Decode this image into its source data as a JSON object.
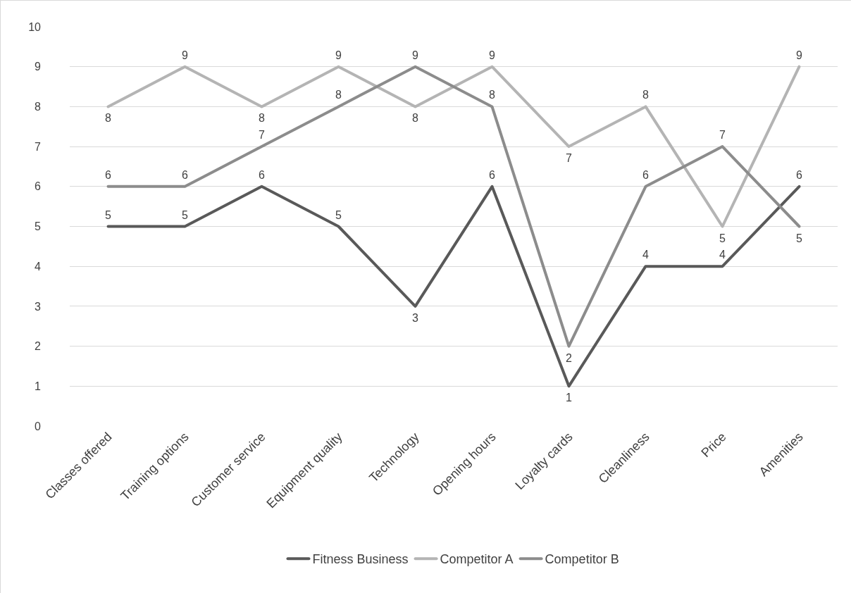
{
  "chart_data": {
    "type": "line",
    "categories": [
      "Classes offered",
      "Training options",
      "Customer service",
      "Equipment quality",
      "Technology",
      "Opening hours",
      "Loyalty cards",
      "Cleanliness",
      "Price",
      "Amenities"
    ],
    "series": [
      {
        "name": "Fitness Business",
        "color": "#595959",
        "values": [
          5,
          5,
          6,
          5,
          3,
          6,
          1,
          4,
          4,
          6
        ]
      },
      {
        "name": "Competitor A",
        "color": "#b4b4b4",
        "values": [
          8,
          9,
          8,
          9,
          8,
          9,
          7,
          8,
          5,
          9
        ]
      },
      {
        "name": "Competitor B",
        "color": "#8c8c8c",
        "values": [
          6,
          6,
          7,
          8,
          9,
          8,
          2,
          6,
          7,
          5
        ]
      }
    ],
    "ylim": [
      0,
      10
    ],
    "yticks": [
      0,
      1,
      2,
      3,
      4,
      5,
      6,
      7,
      8,
      9,
      10
    ],
    "grid": "y",
    "legend": "bottom",
    "data_labels": true,
    "marker": "none",
    "line_style": "solid"
  }
}
